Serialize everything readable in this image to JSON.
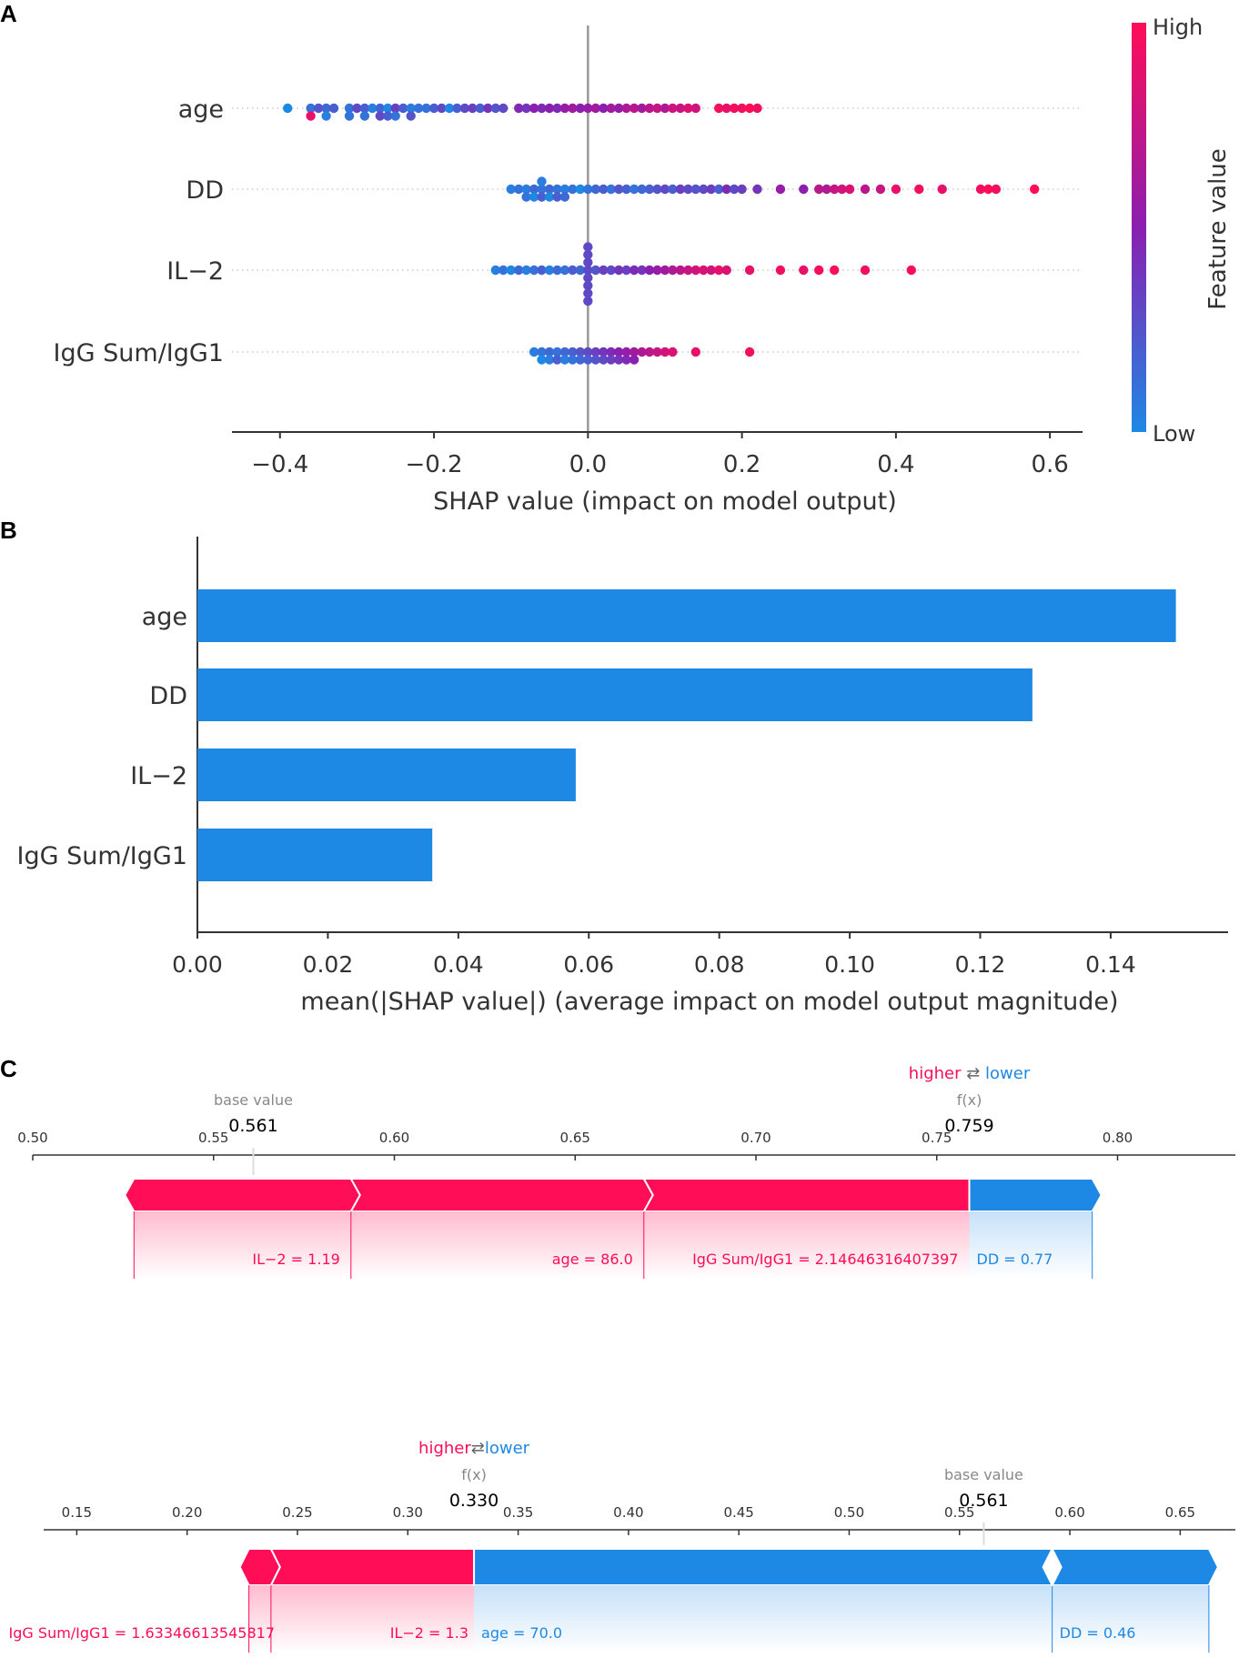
{
  "colors": {
    "high": "#ff0d57",
    "low": "#1e88e5",
    "mid": "#8a1fb0",
    "axis_line": "#333333",
    "zero_line": "#999999"
  },
  "panel_labels": [
    "A",
    "B",
    "C"
  ],
  "chart_data": [
    {
      "type": "scatter",
      "subtype": "shap-beeswarm",
      "features": [
        "age",
        "DD",
        "IL−2",
        "IgG Sum/IgG1"
      ],
      "xlabel": "SHAP value (impact on model output)",
      "xlim": [
        -0.46,
        0.64
      ],
      "xticks": [
        -0.4,
        -0.2,
        0.0,
        0.2,
        0.4,
        0.6
      ],
      "xtick_labels": [
        "−0.4",
        "−0.2",
        "0.0",
        "0.2",
        "0.4",
        "0.6"
      ],
      "colorbar": {
        "label": "Feature value",
        "high_label": "High",
        "low_label": "Low"
      },
      "series": [
        {
          "name": "age",
          "points": [
            [
              -0.39,
              0.0
            ],
            [
              -0.36,
              0.1
            ],
            [
              -0.36,
              0.9
            ],
            [
              -0.35,
              0.25
            ],
            [
              -0.34,
              0.15
            ],
            [
              -0.34,
              0.05
            ],
            [
              -0.33,
              0.2
            ],
            [
              -0.31,
              0.1
            ],
            [
              -0.31,
              0.1
            ],
            [
              -0.3,
              0.3
            ],
            [
              -0.29,
              0.2
            ],
            [
              -0.29,
              0.1
            ],
            [
              -0.28,
              0.05
            ],
            [
              -0.27,
              0.15
            ],
            [
              -0.27,
              0.3
            ],
            [
              -0.26,
              0.0
            ],
            [
              -0.26,
              0.2
            ],
            [
              -0.25,
              0.35
            ],
            [
              -0.25,
              0.1
            ],
            [
              -0.24,
              0.2
            ],
            [
              -0.23,
              0.05
            ],
            [
              -0.23,
              0.25
            ],
            [
              -0.22,
              0.1
            ],
            [
              -0.21,
              0.1
            ],
            [
              -0.2,
              0.2
            ],
            [
              -0.19,
              0.3
            ],
            [
              -0.18,
              0.0
            ],
            [
              -0.17,
              0.2
            ],
            [
              -0.16,
              0.3
            ],
            [
              -0.15,
              0.35
            ],
            [
              -0.14,
              0.2
            ],
            [
              -0.13,
              0.4
            ],
            [
              -0.12,
              0.25
            ],
            [
              -0.11,
              0.3
            ],
            [
              -0.09,
              0.45
            ],
            [
              -0.08,
              0.4
            ],
            [
              -0.07,
              0.5
            ],
            [
              -0.06,
              0.45
            ],
            [
              -0.05,
              0.5
            ],
            [
              -0.04,
              0.45
            ],
            [
              -0.03,
              0.55
            ],
            [
              -0.02,
              0.6
            ],
            [
              -0.01,
              0.5
            ],
            [
              0.0,
              0.55
            ],
            [
              0.01,
              0.6
            ],
            [
              0.02,
              0.5
            ],
            [
              0.03,
              0.6
            ],
            [
              0.04,
              0.55
            ],
            [
              0.05,
              0.65
            ],
            [
              0.06,
              0.7
            ],
            [
              0.07,
              0.6
            ],
            [
              0.08,
              0.7
            ],
            [
              0.09,
              0.75
            ],
            [
              0.1,
              0.65
            ],
            [
              0.11,
              0.8
            ],
            [
              0.12,
              0.75
            ],
            [
              0.13,
              0.85
            ],
            [
              0.14,
              0.8
            ],
            [
              0.17,
              0.95
            ],
            [
              0.18,
              0.9
            ],
            [
              0.19,
              0.95
            ],
            [
              0.2,
              0.95
            ],
            [
              0.21,
              1.0
            ],
            [
              0.22,
              0.95
            ]
          ]
        },
        {
          "name": "DD",
          "points": [
            [
              -0.1,
              0.05
            ],
            [
              -0.09,
              0.1
            ],
            [
              -0.08,
              0.05
            ],
            [
              -0.08,
              0.1
            ],
            [
              -0.07,
              0.15
            ],
            [
              -0.07,
              0.0
            ],
            [
              -0.06,
              0.1
            ],
            [
              -0.06,
              0.2
            ],
            [
              -0.06,
              0.05
            ],
            [
              -0.05,
              0.15
            ],
            [
              -0.05,
              0.0
            ],
            [
              -0.04,
              0.1
            ],
            [
              -0.04,
              0.2
            ],
            [
              -0.03,
              0.05
            ],
            [
              -0.03,
              0.15
            ],
            [
              -0.02,
              0.1
            ],
            [
              -0.01,
              0.0
            ],
            [
              0.0,
              0.1
            ],
            [
              0.01,
              0.15
            ],
            [
              0.02,
              0.2
            ],
            [
              0.03,
              0.1
            ],
            [
              0.04,
              0.25
            ],
            [
              0.05,
              0.2
            ],
            [
              0.06,
              0.1
            ],
            [
              0.07,
              0.15
            ],
            [
              0.08,
              0.2
            ],
            [
              0.09,
              0.25
            ],
            [
              0.1,
              0.3
            ],
            [
              0.11,
              0.2
            ],
            [
              0.12,
              0.35
            ],
            [
              0.13,
              0.3
            ],
            [
              0.14,
              0.25
            ],
            [
              0.15,
              0.3
            ],
            [
              0.16,
              0.35
            ],
            [
              0.17,
              0.2
            ],
            [
              0.18,
              0.45
            ],
            [
              0.19,
              0.3
            ],
            [
              0.2,
              0.35
            ],
            [
              0.22,
              0.4
            ],
            [
              0.25,
              0.55
            ],
            [
              0.28,
              0.5
            ],
            [
              0.3,
              0.7
            ],
            [
              0.31,
              0.65
            ],
            [
              0.32,
              0.75
            ],
            [
              0.33,
              0.8
            ],
            [
              0.34,
              0.85
            ],
            [
              0.36,
              0.7
            ],
            [
              0.38,
              0.75
            ],
            [
              0.4,
              0.9
            ],
            [
              0.43,
              0.95
            ],
            [
              0.46,
              0.9
            ],
            [
              0.51,
              0.95
            ],
            [
              0.52,
              1.0
            ],
            [
              0.53,
              0.95
            ],
            [
              0.58,
              1.0
            ]
          ]
        },
        {
          "name": "IL−2",
          "points": [
            [
              -0.12,
              0.05
            ],
            [
              -0.11,
              0.1
            ],
            [
              -0.1,
              0.0
            ],
            [
              -0.09,
              0.15
            ],
            [
              -0.08,
              0.05
            ],
            [
              -0.07,
              0.1
            ],
            [
              -0.06,
              0.2
            ],
            [
              -0.05,
              0.05
            ],
            [
              -0.04,
              0.15
            ],
            [
              -0.03,
              0.1
            ],
            [
              -0.02,
              0.2
            ],
            [
              -0.01,
              0.15
            ],
            [
              0.0,
              0.3
            ],
            [
              0.0,
              0.3
            ],
            [
              0.0,
              0.3
            ],
            [
              0.0,
              0.3
            ],
            [
              0.0,
              0.3
            ],
            [
              0.0,
              0.3
            ],
            [
              0.0,
              0.3
            ],
            [
              0.0,
              0.3
            ],
            [
              0.01,
              0.25
            ],
            [
              0.02,
              0.35
            ],
            [
              0.03,
              0.3
            ],
            [
              0.04,
              0.4
            ],
            [
              0.05,
              0.35
            ],
            [
              0.06,
              0.45
            ],
            [
              0.07,
              0.4
            ],
            [
              0.08,
              0.5
            ],
            [
              0.09,
              0.55
            ],
            [
              0.1,
              0.6
            ],
            [
              0.11,
              0.65
            ],
            [
              0.12,
              0.7
            ],
            [
              0.13,
              0.75
            ],
            [
              0.14,
              0.8
            ],
            [
              0.15,
              0.85
            ],
            [
              0.16,
              0.8
            ],
            [
              0.17,
              0.9
            ],
            [
              0.18,
              0.85
            ],
            [
              0.21,
              0.9
            ],
            [
              0.25,
              0.95
            ],
            [
              0.28,
              0.9
            ],
            [
              0.3,
              0.95
            ],
            [
              0.32,
              1.0
            ],
            [
              0.36,
              0.95
            ],
            [
              0.42,
              1.0
            ]
          ]
        },
        {
          "name": "IgG Sum/IgG1",
          "points": [
            [
              -0.07,
              0.05
            ],
            [
              -0.06,
              0.1
            ],
            [
              -0.06,
              0.0
            ],
            [
              -0.05,
              0.15
            ],
            [
              -0.05,
              0.05
            ],
            [
              -0.04,
              0.1
            ],
            [
              -0.04,
              0.2
            ],
            [
              -0.03,
              0.15
            ],
            [
              -0.03,
              0.05
            ],
            [
              -0.02,
              0.2
            ],
            [
              -0.02,
              0.1
            ],
            [
              -0.01,
              0.25
            ],
            [
              -0.01,
              0.15
            ],
            [
              0.0,
              0.3
            ],
            [
              0.0,
              0.2
            ],
            [
              0.01,
              0.35
            ],
            [
              0.01,
              0.25
            ],
            [
              0.02,
              0.4
            ],
            [
              0.02,
              0.3
            ],
            [
              0.03,
              0.45
            ],
            [
              0.03,
              0.35
            ],
            [
              0.04,
              0.5
            ],
            [
              0.04,
              0.4
            ],
            [
              0.05,
              0.55
            ],
            [
              0.05,
              0.45
            ],
            [
              0.06,
              0.6
            ],
            [
              0.06,
              0.5
            ],
            [
              0.07,
              0.65
            ],
            [
              0.08,
              0.7
            ],
            [
              0.09,
              0.75
            ],
            [
              0.1,
              0.8
            ],
            [
              0.11,
              0.85
            ],
            [
              0.14,
              0.9
            ],
            [
              0.21,
              0.95
            ]
          ]
        }
      ]
    },
    {
      "type": "bar",
      "orientation": "horizontal",
      "categories": [
        "age",
        "DD",
        "IL−2",
        "IgG Sum/IgG1"
      ],
      "values": [
        0.15,
        0.128,
        0.058,
        0.036
      ],
      "xlabel": "mean(|SHAP value|) (average impact on model output magnitude)",
      "xlim": [
        0,
        0.158
      ],
      "xticks": [
        0.0,
        0.02,
        0.04,
        0.06,
        0.08,
        0.1,
        0.12,
        0.14
      ],
      "xtick_labels": [
        "0.00",
        "0.02",
        "0.04",
        "0.06",
        "0.08",
        "0.10",
        "0.12",
        "0.14"
      ]
    },
    {
      "type": "bar",
      "subtype": "shap-force",
      "xlim": [
        0.5,
        0.82
      ],
      "xticks": [
        0.5,
        0.55,
        0.6,
        0.65,
        0.7,
        0.75,
        0.8
      ],
      "xtick_labels": [
        "0.50",
        "0.55",
        "0.60",
        "0.65",
        "0.70",
        "0.75",
        "0.80"
      ],
      "base_value": 0.561,
      "base_value_text": "0.561",
      "base_label": "base value",
      "fx": 0.759,
      "fx_text": "0.759",
      "fx_label": "f(x)",
      "legend": {
        "higher": "higher",
        "arrows": "⇄",
        "lower": "lower"
      },
      "positive": [
        {
          "label": "IL−2 = 1.19",
          "start": 0.528,
          "end": 0.588
        },
        {
          "label": "age = 86.0",
          "start": 0.588,
          "end": 0.669
        },
        {
          "label": "IgG Sum/IgG1 = 2.14646316407397",
          "start": 0.669,
          "end": 0.759
        }
      ],
      "negative": [
        {
          "label": "DD = 0.77",
          "start": 0.759,
          "end": 0.793
        }
      ]
    },
    {
      "type": "bar",
      "subtype": "shap-force",
      "xlim": [
        0.135,
        0.675
      ],
      "xticks": [
        0.15,
        0.2,
        0.25,
        0.3,
        0.35,
        0.4,
        0.45,
        0.5,
        0.55,
        0.6,
        0.65
      ],
      "xtick_labels": [
        "0.15",
        "0.20",
        "0.25",
        "0.30",
        "0.35",
        "0.40",
        "0.45",
        "0.50",
        "0.55",
        "0.60",
        "0.65"
      ],
      "base_value": 0.561,
      "base_value_text": "0.561",
      "base_label": "base value",
      "fx": 0.33,
      "fx_text": "0.330",
      "fx_label": "f(x)",
      "legend": {
        "higher": "higher",
        "arrows": "⇄",
        "lower": "lower"
      },
      "positive": [
        {
          "label": "IgG Sum/IgG1 = 1.63346613545817",
          "start": 0.228,
          "end": 0.238
        },
        {
          "label": "IL−2 = 1.3",
          "start": 0.238,
          "end": 0.33
        }
      ],
      "negative": [
        {
          "label": "age = 70.0",
          "start": 0.33,
          "end": 0.592
        },
        {
          "label": "DD = 0.46",
          "start": 0.592,
          "end": 0.663
        }
      ]
    }
  ]
}
